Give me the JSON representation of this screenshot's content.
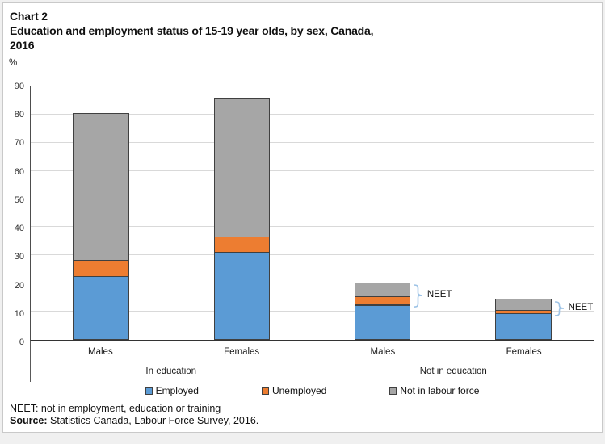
{
  "header": {
    "chart_label": "Chart 2",
    "title_line1": "Education and employment status of 15-19 year olds, by sex, Canada,",
    "title_line2": "2016",
    "y_unit": "%"
  },
  "chart_data": {
    "type": "bar",
    "stacked": true,
    "title": "Education and employment status of 15-19 year olds, by sex, Canada, 2016",
    "ylabel": "%",
    "ylim": [
      0,
      90
    ],
    "ytick_step": 10,
    "grid": true,
    "legend_position": "bottom",
    "groups": [
      {
        "label": "In education",
        "categories": [
          "Males",
          "Females"
        ]
      },
      {
        "label": "Not in education",
        "categories": [
          "Males",
          "Females"
        ]
      }
    ],
    "categories": [
      "Males",
      "Females",
      "Males",
      "Females"
    ],
    "series": [
      {
        "name": "Employed",
        "color": "#5b9bd5",
        "values": [
          22.4,
          31.1,
          12.2,
          9.2
        ]
      },
      {
        "name": "Unemployed",
        "color": "#ed7d31",
        "values": [
          5.6,
          5.3,
          3.1,
          1.2
        ]
      },
      {
        "name": "Not in labour force",
        "color": "#a6a6a6",
        "values": [
          52.4,
          49.0,
          4.9,
          3.9
        ]
      }
    ],
    "bar_totals": [
      80.4,
      85.4,
      20.2,
      14.3
    ],
    "annotations": [
      {
        "label": "NEET",
        "bar_index": 2,
        "spans_series": [
          "Unemployed",
          "Not in labour force"
        ],
        "from_value": 12.2,
        "to_value": 20.2
      },
      {
        "label": "NEET",
        "bar_index": 3,
        "spans_series": [
          "Unemployed",
          "Not in labour force"
        ],
        "from_value": 9.2,
        "to_value": 14.3
      }
    ],
    "annotation_color": "#9dc3e6"
  },
  "footer": {
    "note": "NEET: not in employment, education or training",
    "source_label": "Source:",
    "source_text": " Statistics Canada, Labour Force Survey, 2016."
  }
}
